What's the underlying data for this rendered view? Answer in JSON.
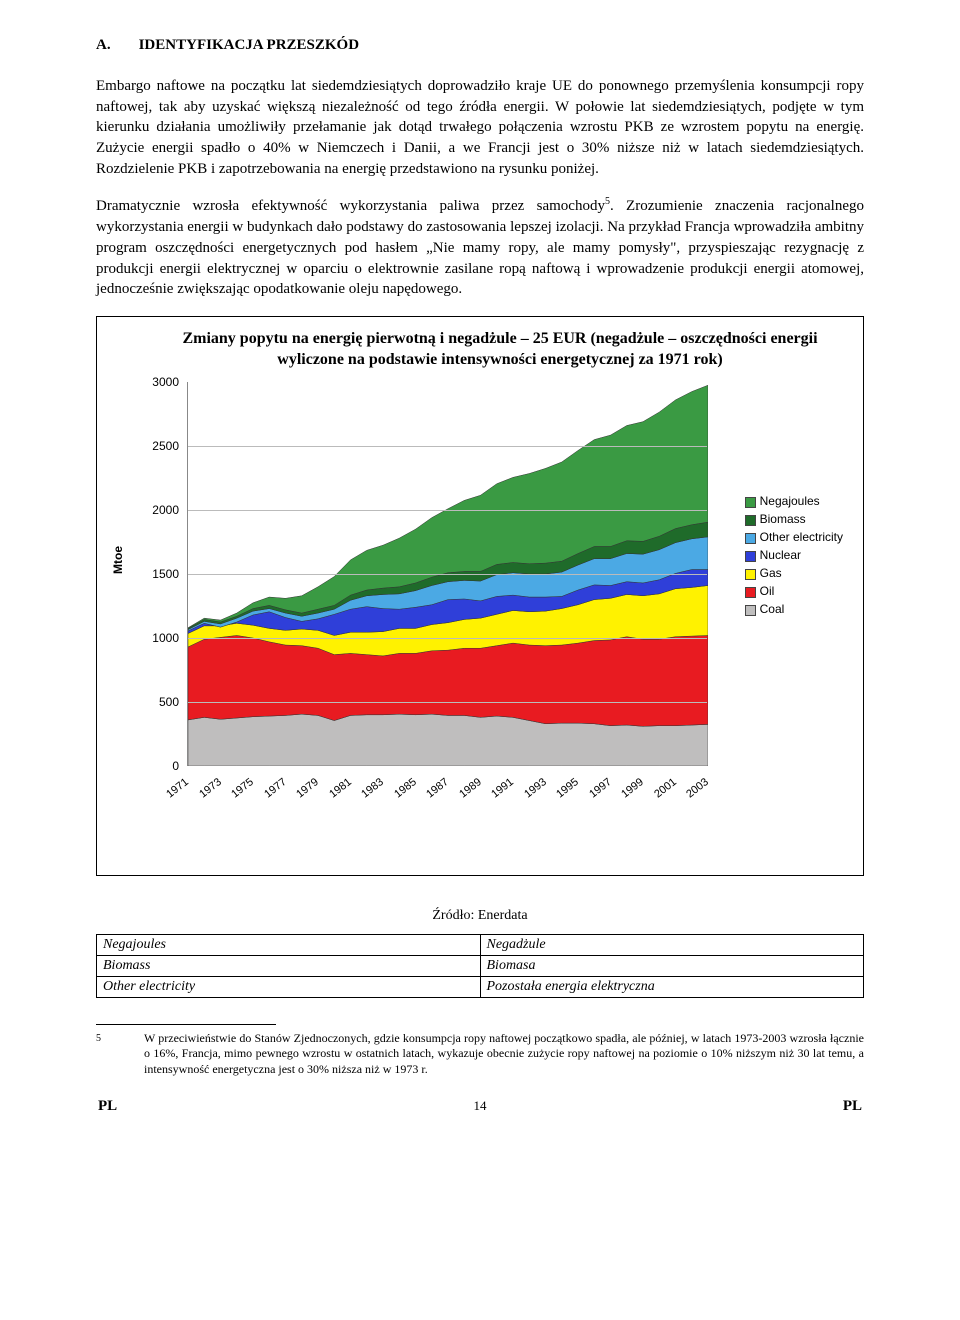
{
  "heading": {
    "letter": "A.",
    "text": "IDENTYFIKACJA PRZESZKÓD"
  },
  "para1": "Embargo naftowe na początku lat siedemdziesiątych doprowadziło kraje UE do ponownego przemyślenia konsumpcji ropy naftowej, tak aby uzyskać większą niezależność od tego źródła energii. W połowie lat siedemdziesiątych, podjęte w tym kierunku działania umożliwiły przełamanie jak dotąd trwałego połączenia wzrostu PKB ze wzrostem popytu na energię. Zużycie energii spadło o 40% w Niemczech i Danii, a we Francji jest o 30% niższe niż w latach siedemdziesiątych. Rozdzielenie PKB i zapotrzebowania na energię przedstawiono na rysunku poniżej.",
  "para2a": "Dramatycznie wzrosła efektywność wykorzystania paliwa przez samochody",
  "para2_sup": "5",
  "para2b": ". Zrozumienie znaczenia racjonalnego wykorzystania energii w budynkach dało podstawy do zastosowania lepszej izolacji. Na przykład Francja wprowadziła ambitny program oszczędności energetycznych pod hasłem „Nie mamy ropy, ale mamy pomysły\", przyspieszając rezygnację z produkcji energii elektrycznej w oparciu o elektrownie zasilane ropą naftową i wprowadzenie produkcji energii atomowej, jednocześnie zwiększając opodatkowanie oleju napędowego.",
  "chart": {
    "title": "Zmiany popytu na energię pierwotną i negadżule – 25 EUR (negadżule – oszczędności energii wyliczone na podstawie intensywności energetycznej za 1971 rok)",
    "ylabel": "Mtoe",
    "ylim": [
      0,
      3000
    ],
    "ytick_step": 500,
    "xticks": [
      "1971",
      "1973",
      "1975",
      "1977",
      "1979",
      "1981",
      "1983",
      "1985",
      "1987",
      "1989",
      "1991",
      "1993",
      "1995",
      "1997",
      "1999",
      "2001",
      "2003"
    ],
    "series": [
      {
        "name": "Coal",
        "color": "#bfbebe"
      },
      {
        "name": "Oil",
        "color": "#e81b21"
      },
      {
        "name": "Gas",
        "color": "#fff200"
      },
      {
        "name": "Nuclear",
        "color": "#2f3fd9"
      },
      {
        "name": "Other electricity",
        "color": "#4ba9e4"
      },
      {
        "name": "Biomass",
        "color": "#1f6b2a"
      },
      {
        "name": "Negajoules",
        "color": "#3a9a43"
      }
    ],
    "stack_top": [
      [
        1055,
        1115,
        1085,
        1125,
        1180,
        1205,
        1160,
        1130,
        1150,
        1185,
        1225,
        1245,
        1230,
        1225,
        1240,
        1260,
        1300,
        1305,
        1290,
        1325,
        1335,
        1320,
        1320,
        1325,
        1375,
        1415,
        1410,
        1440,
        1430,
        1455,
        1505,
        1535,
        1535
      ],
      [
        1065,
        1130,
        1110,
        1155,
        1210,
        1230,
        1195,
        1170,
        1195,
        1225,
        1295,
        1330,
        1340,
        1345,
        1370,
        1410,
        1440,
        1450,
        1445,
        1495,
        1510,
        1500,
        1500,
        1515,
        1570,
        1620,
        1620,
        1660,
        1655,
        1690,
        1745,
        1775,
        1790
      ],
      [
        1075,
        1145,
        1125,
        1170,
        1230,
        1255,
        1220,
        1195,
        1225,
        1255,
        1335,
        1375,
        1390,
        1400,
        1430,
        1475,
        1510,
        1520,
        1520,
        1575,
        1590,
        1580,
        1585,
        1600,
        1660,
        1715,
        1715,
        1760,
        1755,
        1795,
        1855,
        1885,
        1905
      ],
      [
        1080,
        1155,
        1140,
        1195,
        1275,
        1320,
        1310,
        1330,
        1400,
        1480,
        1610,
        1685,
        1725,
        1780,
        1850,
        1940,
        2010,
        2075,
        2115,
        2205,
        2255,
        2285,
        2325,
        2375,
        2465,
        2550,
        2585,
        2660,
        2690,
        2765,
        2860,
        2925,
        2975
      ]
    ],
    "coal_top": [
      360,
      380,
      365,
      375,
      385,
      390,
      395,
      405,
      395,
      355,
      395,
      400,
      400,
      405,
      400,
      405,
      395,
      395,
      380,
      390,
      380,
      355,
      330,
      335,
      335,
      330,
      315,
      320,
      310,
      315,
      315,
      320,
      325
    ],
    "oil_top": [
      930,
      990,
      1005,
      1020,
      1000,
      970,
      945,
      940,
      920,
      870,
      880,
      870,
      860,
      880,
      880,
      900,
      905,
      920,
      920,
      940,
      960,
      945,
      940,
      945,
      960,
      980,
      985,
      1010,
      990,
      990,
      1010,
      1015,
      1020
    ],
    "gas_top": [
      1035,
      1095,
      1095,
      1115,
      1100,
      1075,
      1060,
      1070,
      1060,
      1020,
      1045,
      1045,
      1050,
      1075,
      1075,
      1105,
      1120,
      1145,
      1155,
      1185,
      1215,
      1205,
      1210,
      1230,
      1260,
      1300,
      1310,
      1340,
      1330,
      1345,
      1385,
      1395,
      1410
    ]
  },
  "source": "Źródło: Enerdata",
  "trans": [
    [
      "Negajoules",
      "Negadżule"
    ],
    [
      "Biomass",
      "Biomasa"
    ],
    [
      "Other electricity",
      "Pozostała energia elektryczna"
    ]
  ],
  "footnote": {
    "num": "5",
    "text": "W przeciwieństwie do Stanów Zjednoczonych, gdzie konsumpcja ropy naftowej początkowo spadła, ale później, w latach 1973-2003 wzrosła łącznie o 16%, Francja, mimo pewnego wzrostu w ostatnich latach, wykazuje obecnie zużycie ropy naftowej na poziomie o 10% niższym niż 30 lat temu, a intensywność energetyczna jest o 30% niższa niż w 1973 r."
  },
  "footer": {
    "left": "PL",
    "page": "14",
    "right": "PL"
  }
}
